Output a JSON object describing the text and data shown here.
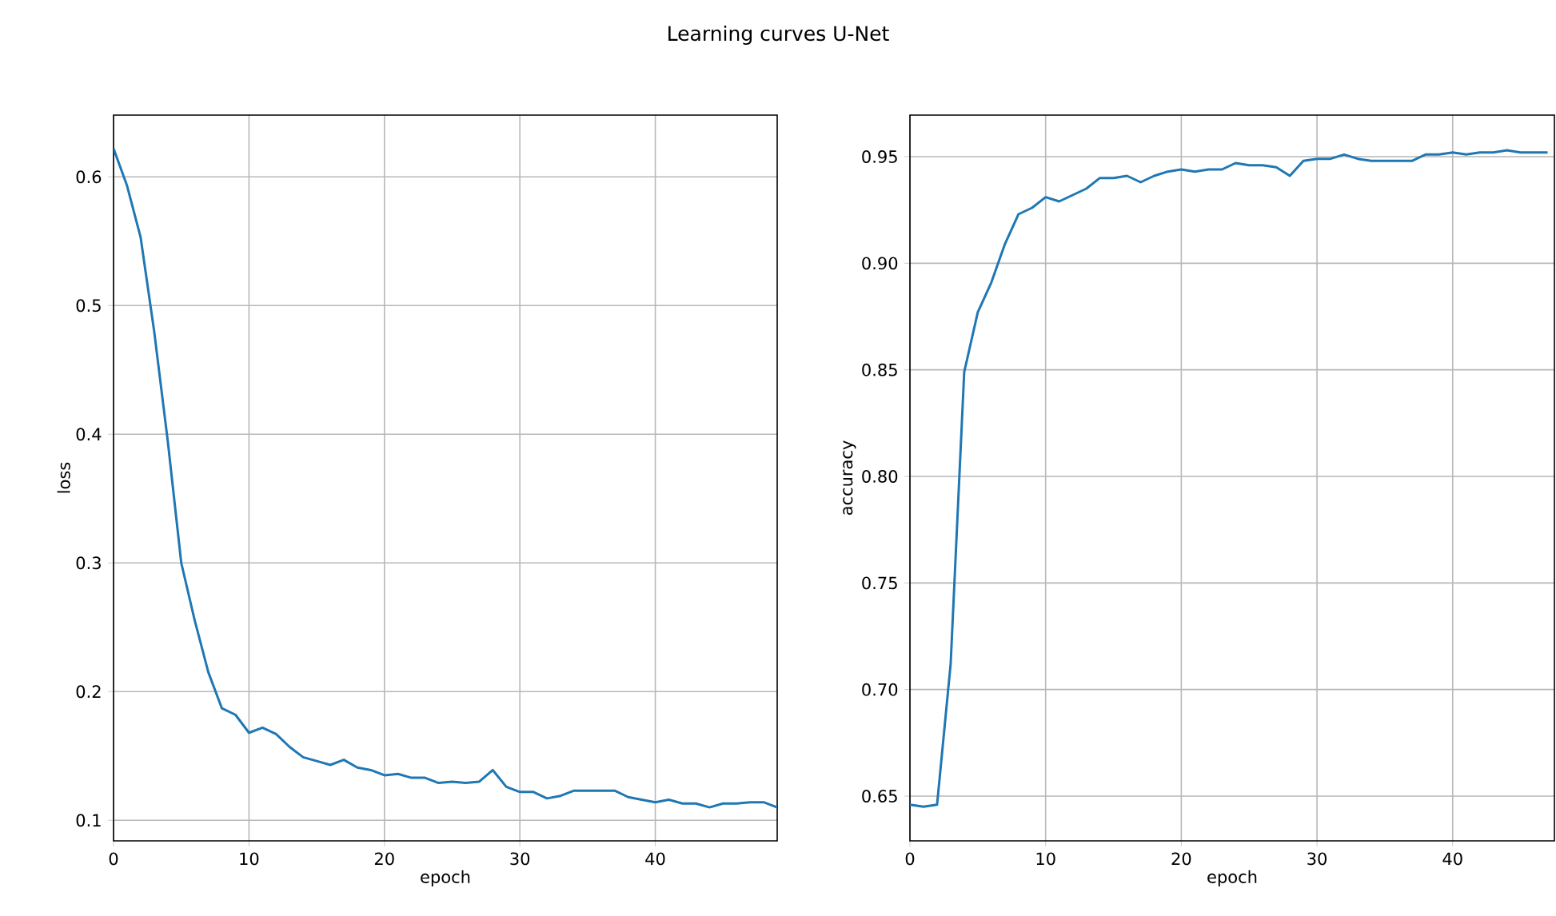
{
  "chart_data": [
    {
      "type": "line",
      "title": "Learning curves U-Net",
      "xlabel": "epoch",
      "ylabel": "loss",
      "grid": true,
      "x": [
        0,
        1,
        2,
        3,
        4,
        5,
        6,
        7,
        8,
        9,
        10,
        11,
        12,
        13,
        14,
        15,
        16,
        17,
        18,
        19,
        20,
        21,
        22,
        23,
        24,
        25,
        26,
        27,
        28,
        29,
        30,
        31,
        32,
        33,
        34,
        35,
        36,
        37,
        38,
        39,
        40,
        41,
        42,
        43,
        44,
        45,
        46,
        47,
        48,
        49
      ],
      "series": [
        {
          "color": "#1f77b4",
          "values": [
            0.622,
            0.593,
            0.553,
            0.48,
            0.395,
            0.3,
            0.255,
            0.215,
            0.187,
            0.182,
            0.168,
            0.172,
            0.167,
            0.157,
            0.149,
            0.146,
            0.143,
            0.147,
            0.141,
            0.139,
            0.135,
            0.136,
            0.133,
            0.133,
            0.129,
            0.13,
            0.129,
            0.13,
            0.139,
            0.126,
            0.122,
            0.122,
            0.117,
            0.119,
            0.123,
            0.123,
            0.123,
            0.123,
            0.118,
            0.116,
            0.114,
            0.116,
            0.113,
            0.113,
            0.11,
            0.113,
            0.113,
            0.114,
            0.114,
            0.11
          ]
        }
      ],
      "xlim": [
        0,
        49
      ],
      "xticks": [
        0,
        10,
        20,
        30,
        40
      ],
      "ylim": [
        0.084,
        0.648
      ],
      "yticks": [
        0.1,
        0.2,
        0.3,
        0.4,
        0.5,
        0.6
      ]
    },
    {
      "type": "line",
      "xlabel": "epoch",
      "ylabel": "accuracy",
      "grid": true,
      "x": [
        0,
        1,
        2,
        3,
        4,
        5,
        6,
        7,
        8,
        9,
        10,
        11,
        12,
        13,
        14,
        15,
        16,
        17,
        18,
        19,
        20,
        21,
        22,
        23,
        24,
        25,
        26,
        27,
        28,
        29,
        30,
        31,
        32,
        33,
        34,
        35,
        36,
        37,
        38,
        39,
        40,
        41,
        42,
        43,
        44,
        45,
        46,
        47
      ],
      "series": [
        {
          "color": "#1f77b4",
          "values": [
            0.646,
            0.645,
            0.646,
            0.712,
            0.849,
            0.877,
            0.891,
            0.909,
            0.923,
            0.926,
            0.931,
            0.929,
            0.932,
            0.935,
            0.94,
            0.94,
            0.941,
            0.938,
            0.941,
            0.943,
            0.944,
            0.943,
            0.944,
            0.944,
            0.947,
            0.946,
            0.946,
            0.945,
            0.941,
            0.948,
            0.949,
            0.949,
            0.951,
            0.949,
            0.948,
            0.948,
            0.948,
            0.948,
            0.951,
            0.951,
            0.952,
            0.951,
            0.952,
            0.952,
            0.953,
            0.952,
            0.952,
            0.952
          ]
        }
      ],
      "xlim": [
        0,
        47.5
      ],
      "xticks": [
        0,
        10,
        20,
        30,
        40
      ],
      "ylim": [
        0.629,
        0.9695
      ],
      "yticks": [
        0.65,
        {
          "value": 0.7,
          "label": "0.70"
        },
        0.75,
        {
          "value": 0.8,
          "label": "0.80"
        },
        0.85,
        {
          "value": 0.9,
          "label": "0.90"
        },
        0.95
      ]
    }
  ]
}
